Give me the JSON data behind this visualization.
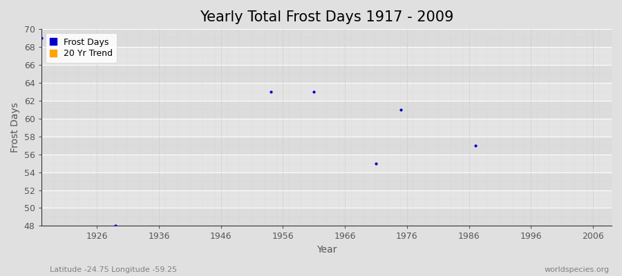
{
  "title": "Yearly Total Frost Days 1917 - 2009",
  "xlabel": "Year",
  "ylabel": "Frost Days",
  "xlim": [
    1917,
    2009
  ],
  "ylim": [
    48,
    70
  ],
  "yticks": [
    48,
    50,
    52,
    54,
    56,
    58,
    60,
    62,
    64,
    66,
    68,
    70
  ],
  "xticks": [
    1926,
    1936,
    1946,
    1956,
    1966,
    1976,
    1986,
    1996,
    2006
  ],
  "scatter_x": [
    1917,
    1929,
    1954,
    1961,
    1971,
    1975,
    1987
  ],
  "scatter_y": [
    69,
    48,
    63,
    63,
    55,
    61,
    57
  ],
  "point_color": "#0000cc",
  "figure_bg": "#e0e0e0",
  "plot_bg_even": "#dcdcdc",
  "plot_bg_odd": "#e8e8e8",
  "grid_color_major_h": "#ffffff",
  "grid_color_minor": "#d0d0d0",
  "axis_color": "#333333",
  "tick_color": "#555555",
  "legend_frost_color": "#0000cc",
  "legend_trend_color": "#ffa500",
  "footnote_left": "Latitude -24.75 Longitude -59.25",
  "footnote_right": "worldspecies.org",
  "title_fontsize": 15,
  "axis_label_fontsize": 10,
  "tick_fontsize": 9,
  "footnote_fontsize": 8,
  "band_colors": [
    "#dcdcdc",
    "#e4e4e4"
  ]
}
